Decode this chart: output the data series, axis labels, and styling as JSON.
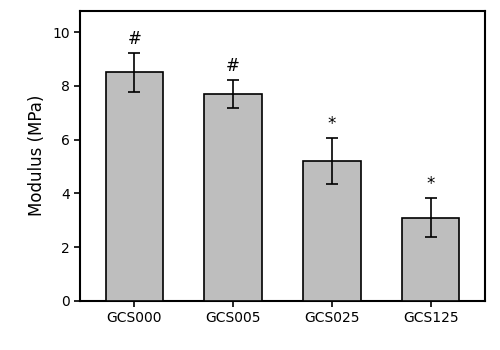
{
  "categories": [
    "GCS000",
    "GCS005",
    "GCS025",
    "GCS125"
  ],
  "values": [
    8.5,
    7.7,
    5.2,
    3.1
  ],
  "errors": [
    0.72,
    0.52,
    0.85,
    0.72
  ],
  "annotations": [
    "#",
    "#",
    "*",
    "*"
  ],
  "bar_color": "#BEBEBE",
  "bar_edgecolor": "#000000",
  "ylabel": "Modulus (MPa)",
  "ylim": [
    0,
    10.8
  ],
  "yticks": [
    0,
    2,
    4,
    6,
    8,
    10
  ],
  "bar_width": 0.58,
  "annotation_fontsize": 12,
  "tick_fontsize": 10,
  "label_fontsize": 12,
  "capsize": 4,
  "error_linewidth": 1.2,
  "spine_linewidth": 1.5,
  "background_color": "#ffffff"
}
